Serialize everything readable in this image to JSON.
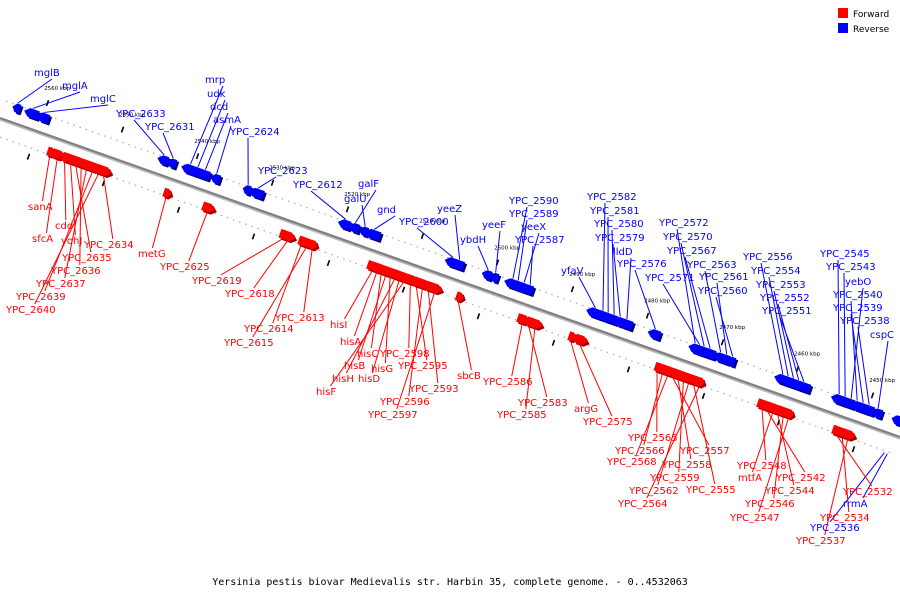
{
  "caption": "Yersinia pestis biovar Medievalis str. Harbin 35, complete genome. - 0..4532063",
  "legend": [
    {
      "label": "Forward",
      "color": "#ff0000"
    },
    {
      "label": "Reverse",
      "color": "#0000ff"
    }
  ],
  "colors": {
    "forward": "#ff0000",
    "reverse": "#0000ff",
    "axis": "#808080"
  },
  "scale": {
    "start_kbp": 2445,
    "end_kbp": 2565,
    "ticks": [
      "2450 kbp",
      "2460 kbp",
      "2470 kbp",
      "2480 kbp",
      "2490 kbp",
      "2500 kbp",
      "2510 kbp",
      "2520 kbp",
      "2530 kbp",
      "2540 kbp",
      "2550 kbp",
      "2560 kbp"
    ]
  },
  "reverse_genes": [
    {
      "name": "mglB",
      "kbp": 2563.5
    },
    {
      "name": "mglA",
      "kbp": 2561.5
    },
    {
      "name": "mglC",
      "kbp": 2560.0
    },
    {
      "name": "YPC_2633",
      "kbp": 2544.0
    },
    {
      "name": "YPC_2631",
      "kbp": 2542.8
    },
    {
      "name": "mrp",
      "kbp": 2540.5
    },
    {
      "name": "udk",
      "kbp": 2539.5
    },
    {
      "name": "dcd",
      "kbp": 2538.5
    },
    {
      "name": "asmA",
      "kbp": 2537.0
    },
    {
      "name": "YPC_2624",
      "kbp": 2532.8
    },
    {
      "name": "YPC_2623",
      "kbp": 2531.5
    },
    {
      "name": "YPC_2612",
      "kbp": 2519.8
    },
    {
      "name": "galF",
      "kbp": 2518.5
    },
    {
      "name": "galU",
      "kbp": 2517.2
    },
    {
      "name": "gnd",
      "kbp": 2516.0
    },
    {
      "name": "YPC_2600",
      "kbp": 2505.5
    },
    {
      "name": "yeeZ",
      "kbp": 2504.6
    },
    {
      "name": "ybdH",
      "kbp": 2500.8
    },
    {
      "name": "yeeF",
      "kbp": 2499.8
    },
    {
      "name": "YPC_2590",
      "kbp": 2497.5
    },
    {
      "name": "YPC_2589",
      "kbp": 2496.8
    },
    {
      "name": "yeeX",
      "kbp": 2496.0
    },
    {
      "name": "YPC_2587",
      "kbp": 2495.2
    },
    {
      "name": "yfaV",
      "kbp": 2486.5
    },
    {
      "name": "YPC_2582",
      "kbp": 2485.5
    },
    {
      "name": "YPC_2581",
      "kbp": 2484.8
    },
    {
      "name": "YPC_2580",
      "kbp": 2484.0
    },
    {
      "name": "YPC_2579",
      "kbp": 2483.2
    },
    {
      "name": "lldD",
      "kbp": 2482.3
    },
    {
      "name": "YPC_2576",
      "kbp": 2478.5
    },
    {
      "name": "YPC_2572",
      "kbp": 2473.2
    },
    {
      "name": "YPC_2571",
      "kbp": 2472.6
    },
    {
      "name": "YPC_2570",
      "kbp": 2472.0
    },
    {
      "name": "YPC_2567",
      "kbp": 2471.2
    },
    {
      "name": "YPC_2563",
      "kbp": 2469.8
    },
    {
      "name": "YPC_2561",
      "kbp": 2469.0
    },
    {
      "name": "YPC_2560",
      "kbp": 2468.2
    },
    {
      "name": "YPC_2556",
      "kbp": 2461.5
    },
    {
      "name": "YPC_2554",
      "kbp": 2460.8
    },
    {
      "name": "YPC_2553",
      "kbp": 2460.1
    },
    {
      "name": "YPC_2552",
      "kbp": 2459.4
    },
    {
      "name": "YPC_2551",
      "kbp": 2458.7
    },
    {
      "name": "YPC_2545",
      "kbp": 2454.0
    },
    {
      "name": "YPC_2543",
      "kbp": 2453.2
    },
    {
      "name": "yebO",
      "kbp": 2452.4
    },
    {
      "name": "YPC_2540",
      "kbp": 2451.6
    },
    {
      "name": "YPC_2539",
      "kbp": 2450.8
    },
    {
      "name": "YPC_2538",
      "kbp": 2450.0
    },
    {
      "name": "cspC",
      "kbp": 2448.8
    },
    {
      "name": "YPC_2536",
      "kbp": 2446.2
    },
    {
      "name": "rrmA",
      "kbp": 2445.8
    }
  ],
  "forward_genes": [
    {
      "name": "sanA",
      "kbp": 2557.5
    },
    {
      "name": "sfcA",
      "kbp": 2556.5
    },
    {
      "name": "cdd",
      "kbp": 2555.5
    },
    {
      "name": "yohJ",
      "kbp": 2554.7
    },
    {
      "name": "YPC_2635",
      "kbp": 2554.0
    },
    {
      "name": "YPC_2636",
      "kbp": 2553.3
    },
    {
      "name": "YPC_2637",
      "kbp": 2552.6
    },
    {
      "name": "YPC_2639",
      "kbp": 2551.8
    },
    {
      "name": "YPC_2640",
      "kbp": 2551.0
    },
    {
      "name": "YPC_2634",
      "kbp": 2550.3
    },
    {
      "name": "metG",
      "kbp": 2542.0
    },
    {
      "name": "YPC_2625",
      "kbp": 2536.5
    },
    {
      "name": "YPC_2619",
      "kbp": 2526.5
    },
    {
      "name": "YPC_2618",
      "kbp": 2525.8
    },
    {
      "name": "YPC_2614",
      "kbp": 2524.0
    },
    {
      "name": "YPC_2615",
      "kbp": 2523.3
    },
    {
      "name": "YPC_2613",
      "kbp": 2522.5
    },
    {
      "name": "hisI",
      "kbp": 2514.5
    },
    {
      "name": "hisA",
      "kbp": 2513.9
    },
    {
      "name": "hisC",
      "kbp": 2513.3
    },
    {
      "name": "hisB",
      "kbp": 2512.7
    },
    {
      "name": "hisG",
      "kbp": 2512.1
    },
    {
      "name": "hisH",
      "kbp": 2511.5
    },
    {
      "name": "hisD",
      "kbp": 2510.9
    },
    {
      "name": "hisF",
      "kbp": 2510.3
    },
    {
      "name": "YPC_2598",
      "kbp": 2509.4
    },
    {
      "name": "YPC_2595",
      "kbp": 2508.6
    },
    {
      "name": "YPC_2596",
      "kbp": 2507.8
    },
    {
      "name": "YPC_2593",
      "kbp": 2507.0
    },
    {
      "name": "YPC_2597",
      "kbp": 2506.2
    },
    {
      "name": "sbcB",
      "kbp": 2503.0
    },
    {
      "name": "YPC_2586",
      "kbp": 2494.5
    },
    {
      "name": "YPC_2583",
      "kbp": 2493.6
    },
    {
      "name": "YPC_2585",
      "kbp": 2492.8
    },
    {
      "name": "argG",
      "kbp": 2488.0
    },
    {
      "name": "YPC_2575",
      "kbp": 2486.8
    },
    {
      "name": "YPC_2565",
      "kbp": 2476.5
    },
    {
      "name": "YPC_2566",
      "kbp": 2475.8
    },
    {
      "name": "YPC_2568",
      "kbp": 2475.1
    },
    {
      "name": "YPC_2557",
      "kbp": 2474.4
    },
    {
      "name": "YPC_2558",
      "kbp": 2473.7
    },
    {
      "name": "YPC_2559",
      "kbp": 2473.0
    },
    {
      "name": "YPC_2562",
      "kbp": 2472.3
    },
    {
      "name": "YPC_2555",
      "kbp": 2471.6
    },
    {
      "name": "YPC_2564",
      "kbp": 2470.9
    },
    {
      "name": "YPC_2548",
      "kbp": 2462.5
    },
    {
      "name": "YPC_2542",
      "kbp": 2461.8
    },
    {
      "name": "mtfA",
      "kbp": 2461.1
    },
    {
      "name": "YPC_2544",
      "kbp": 2460.4
    },
    {
      "name": "YPC_2546",
      "kbp": 2459.7
    },
    {
      "name": "YPC_2547",
      "kbp": 2459.0
    },
    {
      "name": "YPC_2532",
      "kbp": 2452.5
    },
    {
      "name": "YPC_2534",
      "kbp": 2451.8
    },
    {
      "name": "YPC_2537",
      "kbp": 2451.1
    }
  ]
}
